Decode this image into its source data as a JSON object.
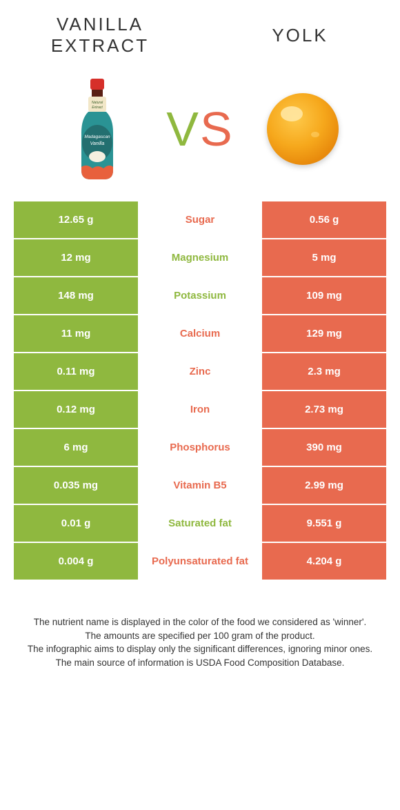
{
  "colors": {
    "left_bg": "#8fb83f",
    "right_bg": "#e86a4f",
    "left_text": "#8fb83f",
    "right_text": "#e86a4f",
    "header_text": "#333333",
    "footer_text": "#333333",
    "white": "#ffffff"
  },
  "header": {
    "left_line1": "VANILLA",
    "left_line2": "EXTRACT",
    "right": "YOLK",
    "vs": "VS"
  },
  "rows": [
    {
      "left": "12.65 g",
      "label": "Sugar",
      "right": "0.56 g",
      "winner": "right"
    },
    {
      "left": "12 mg",
      "label": "Magnesium",
      "right": "5 mg",
      "winner": "left"
    },
    {
      "left": "148 mg",
      "label": "Potassium",
      "right": "109 mg",
      "winner": "left"
    },
    {
      "left": "11 mg",
      "label": "Calcium",
      "right": "129 mg",
      "winner": "right"
    },
    {
      "left": "0.11 mg",
      "label": "Zinc",
      "right": "2.3 mg",
      "winner": "right"
    },
    {
      "left": "0.12 mg",
      "label": "Iron",
      "right": "2.73 mg",
      "winner": "right"
    },
    {
      "left": "6 mg",
      "label": "Phosphorus",
      "right": "390 mg",
      "winner": "right"
    },
    {
      "left": "0.035 mg",
      "label": "Vitamin B5",
      "right": "2.99 mg",
      "winner": "right"
    },
    {
      "left": "0.01 g",
      "label": "Saturated fat",
      "right": "9.551 g",
      "winner": "left"
    },
    {
      "left": "0.004 g",
      "label": "Polyunsaturated fat",
      "right": "4.204 g",
      "winner": "right"
    }
  ],
  "footer": {
    "line1": "The nutrient name is displayed in the color of the food we considered as 'winner'.",
    "line2": "The amounts are specified per 100 gram of the product.",
    "line3": "The infographic aims to display only the significant differences, ignoring minor ones.",
    "line4": "The main source of information is USDA Food Composition Database."
  },
  "bottle_colors": {
    "cap": "#d62f2a",
    "neck_label": "#f2e7c8",
    "body": "#2a9394",
    "label_accent": "#e8603c"
  },
  "yolk_colors": {
    "outer": "#f6a81c",
    "inner": "#f8bb3a",
    "highlight": "#ffe9a8"
  }
}
